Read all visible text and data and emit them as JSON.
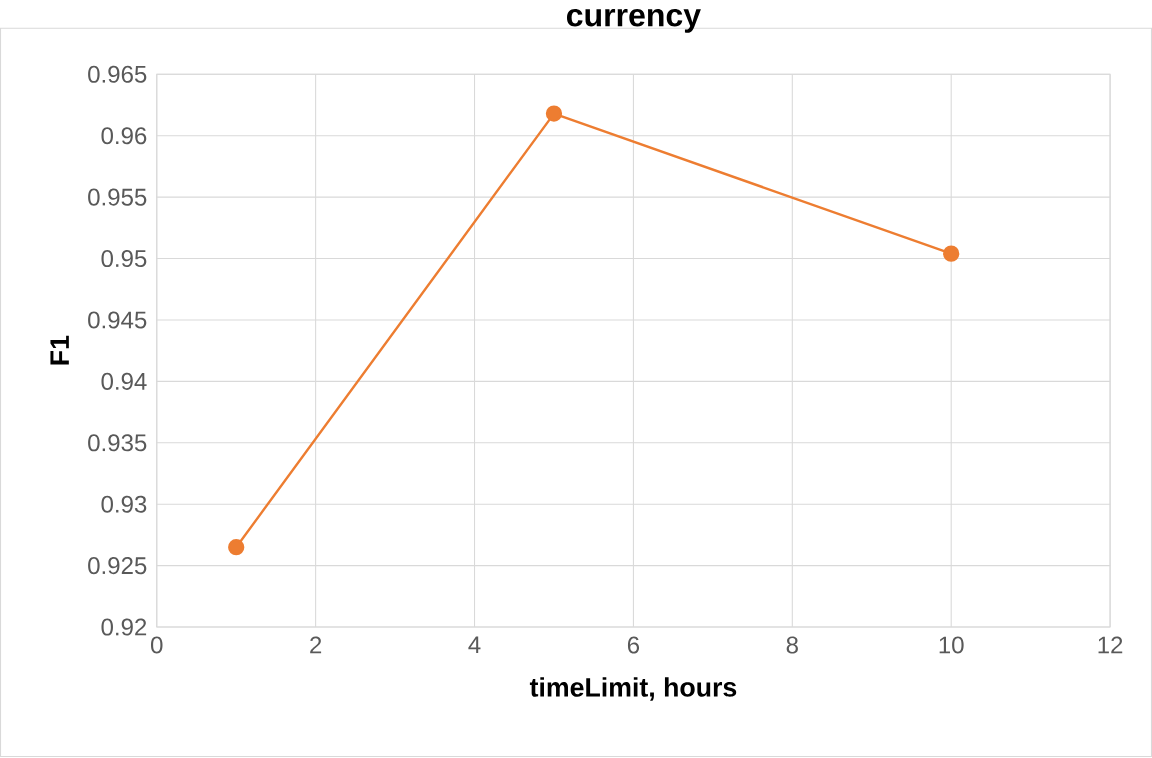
{
  "chart_data": {
    "type": "line",
    "title": "currency",
    "xlabel": "timeLimit, hours",
    "ylabel": "F1",
    "x": [
      1,
      5,
      10
    ],
    "series": [
      {
        "color": "#ed7d31",
        "values": [
          0.9265,
          0.9618,
          0.9504
        ]
      }
    ],
    "xlim": [
      0,
      12
    ],
    "xticks": [
      0,
      2,
      4,
      6,
      8,
      10,
      12
    ],
    "ylim": [
      0.92,
      0.965
    ],
    "yticks": [
      0.92,
      0.925,
      0.93,
      0.935,
      0.94,
      0.945,
      0.95,
      0.955,
      0.96,
      0.965
    ],
    "grid": true,
    "marker": "circle",
    "line_style": "solid"
  }
}
